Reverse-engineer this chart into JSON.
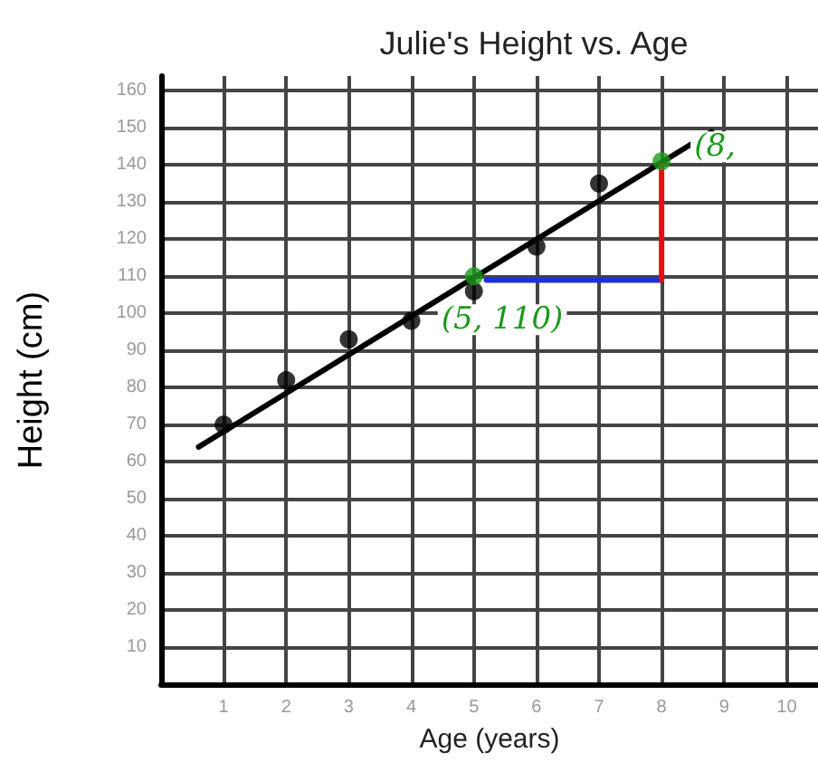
{
  "chart_data": {
    "type": "scatter",
    "title": "Julie's Height vs. Age",
    "xlabel": "Age (years)",
    "ylabel": "Height (cm)",
    "xlim": [
      0,
      10.5
    ],
    "xticks": [
      1,
      2,
      3,
      4,
      5,
      6,
      7,
      8,
      9,
      10
    ],
    "ylim": [
      0,
      164
    ],
    "yticks": [
      10,
      20,
      30,
      40,
      50,
      60,
      70,
      80,
      90,
      100,
      110,
      120,
      130,
      140,
      150,
      160
    ],
    "grid": true,
    "marker": "circle",
    "series": [
      {
        "color": "#000000",
        "x": [
          1,
          2,
          3,
          4,
          5,
          6,
          7
        ],
        "values": [
          70,
          82,
          93,
          98,
          106,
          118,
          135
        ]
      },
      {
        "type": "line",
        "color": "#000000",
        "marker": "none",
        "line_style": "solid",
        "x": [
          0.6,
          8.8
        ],
        "values": [
          64,
          149
        ]
      },
      {
        "type": "scatter",
        "color": "#1a9a1a",
        "x": [
          5,
          8
        ],
        "values": [
          110,
          141
        ]
      },
      {
        "type": "line",
        "color": "#1f2fe0",
        "marker": "none",
        "line_style": "solid",
        "x": [
          5.2,
          8
        ],
        "values": [
          109,
          109
        ]
      },
      {
        "type": "line",
        "color": "#e01010",
        "marker": "none",
        "line_style": "solid",
        "x": [
          8,
          8
        ],
        "values": [
          109,
          140
        ]
      }
    ],
    "annotations": [
      {
        "text": "(5, 110)",
        "x": 5,
        "y": 110
      },
      {
        "text": "(8,",
        "x": 8,
        "y": 141
      }
    ]
  }
}
